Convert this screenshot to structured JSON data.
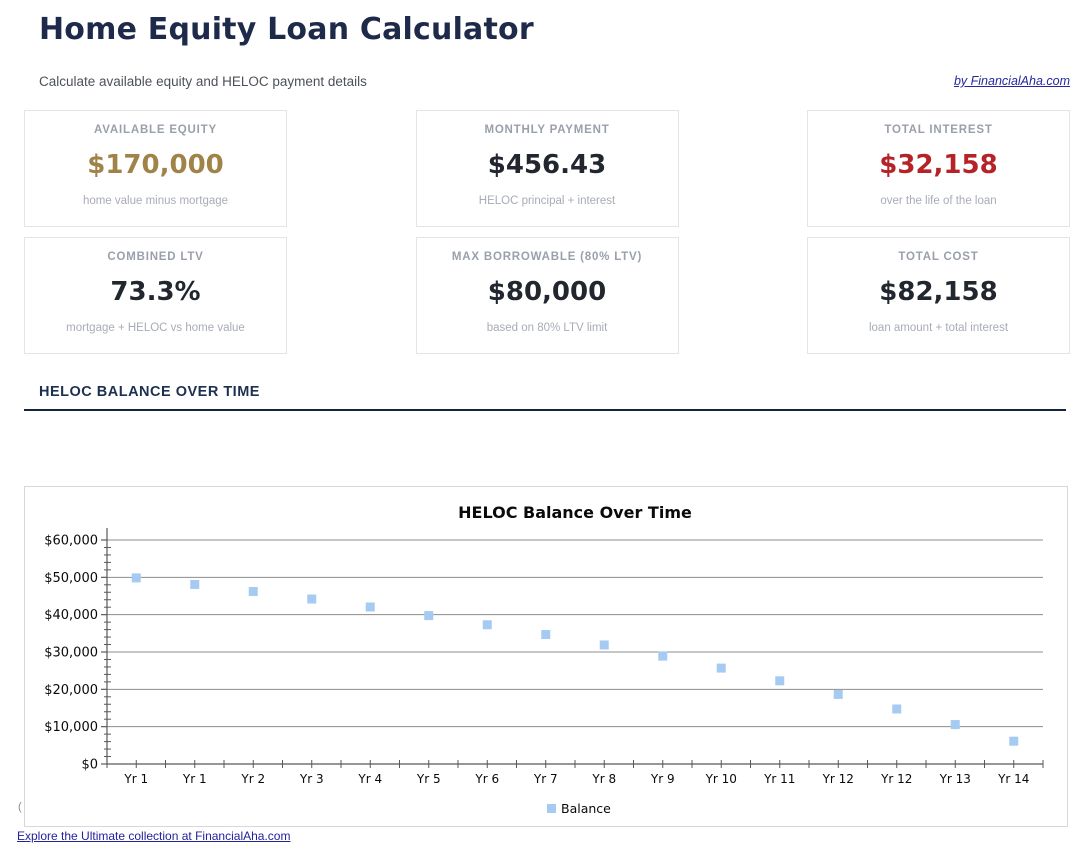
{
  "header": {
    "title": "Home Equity Loan Calculator",
    "subtitle": "Calculate available equity and HELOC payment details",
    "byline": "by FinancialAha.com"
  },
  "cards": [
    {
      "label": "AVAILABLE EQUITY",
      "value": "$170,000",
      "sub": "home value minus mortgage",
      "value_color": "#a08348"
    },
    {
      "label": "MONTHLY PAYMENT",
      "value": "$456.43",
      "sub": "HELOC principal + interest",
      "value_color": "#21262f"
    },
    {
      "label": "TOTAL INTEREST",
      "value": "$32,158",
      "sub": "over the life of the loan",
      "value_color": "#b52227"
    },
    {
      "label": "COMBINED LTV",
      "value": "73.3%",
      "sub": "mortgage + HELOC vs home value",
      "value_color": "#21262f"
    },
    {
      "label": "MAX BORROWABLE (80% LTV)",
      "value": "$80,000",
      "sub": "based on 80% LTV limit",
      "value_color": "#21262f"
    },
    {
      "label": "TOTAL COST",
      "value": "$82,158",
      "sub": "loan amount + total interest",
      "value_color": "#21262f"
    }
  ],
  "section": {
    "title": "HELOC BALANCE OVER TIME"
  },
  "chart_data": {
    "type": "scatter",
    "title": "HELOC Balance Over Time",
    "categories": [
      "Yr 1",
      "Yr 1",
      "Yr 2",
      "Yr 3",
      "Yr 4",
      "Yr 5",
      "Yr 6",
      "Yr 7",
      "Yr 8",
      "Yr 9",
      "Yr 10",
      "Yr 11",
      "Yr 12",
      "Yr 12",
      "Yr 13",
      "Yr 14"
    ],
    "series": [
      {
        "name": "Balance",
        "marker": "square",
        "color": "#a5cbf2",
        "values": [
          49850,
          48090,
          46200,
          44190,
          42050,
          39750,
          37300,
          34680,
          31880,
          28890,
          25690,
          22280,
          18630,
          14730,
          10560,
          6110
        ]
      }
    ],
    "ylabel_ticks": [
      "$0",
      "$10,000",
      "$20,000",
      "$30,000",
      "$40,000",
      "$50,000",
      "$60,000"
    ],
    "ylim": [
      0,
      60000
    ],
    "ytick_step": 10000,
    "ytick_minor_step": 2000,
    "grid": "horizontal",
    "legend_position": "bottom"
  },
  "misc": {
    "clipped_char": "("
  },
  "footer": {
    "link": "Explore the Ultimate collection at FinancialAha.com"
  }
}
